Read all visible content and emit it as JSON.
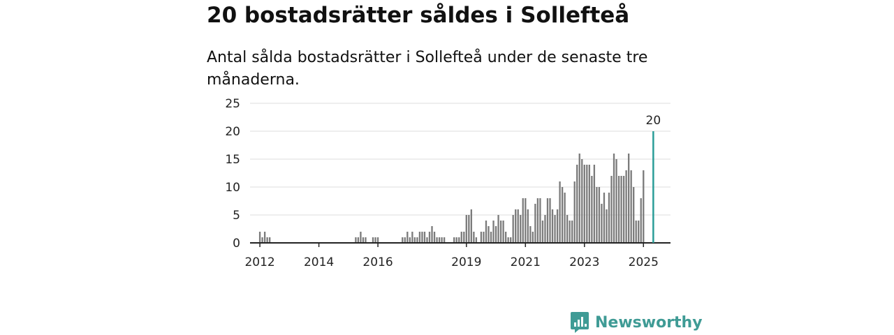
{
  "header": {
    "title": "20 bostadsrätter såldes i Sollefteå",
    "subtitle": "Antal sålda bostadsrätter i Sollefteå under de senaste tre månaderna."
  },
  "brand": {
    "name": "Newsworthy",
    "icon": "newsworthy-logo-icon",
    "color": "#3f9b95"
  },
  "chart_data": {
    "type": "bar",
    "x_axis": {
      "min": "2011-09",
      "max": "2025-12",
      "tick_labels": [
        "2012",
        "2014",
        "2016",
        "2019",
        "2021",
        "2023",
        "2025"
      ],
      "tick_dates": [
        "2012-01",
        "2014-01",
        "2016-01",
        "2019-01",
        "2021-01",
        "2023-01",
        "2025-01"
      ]
    },
    "y_axis": {
      "min": 0,
      "max": 25,
      "ticks": [
        0,
        5,
        10,
        15,
        20,
        25
      ]
    },
    "grid": "horizontal",
    "bar_color": "#7b7b7b",
    "highlight_color": "#2a9d98",
    "highlight": {
      "date": "2025-05",
      "value": 20,
      "label": "20"
    },
    "values": [
      {
        "date": "2012-01",
        "value": 2
      },
      {
        "date": "2012-02",
        "value": 1
      },
      {
        "date": "2012-03",
        "value": 2
      },
      {
        "date": "2012-04",
        "value": 1
      },
      {
        "date": "2012-05",
        "value": 1
      },
      {
        "date": "2015-04",
        "value": 1
      },
      {
        "date": "2015-05",
        "value": 1
      },
      {
        "date": "2015-06",
        "value": 2
      },
      {
        "date": "2015-07",
        "value": 1
      },
      {
        "date": "2015-08",
        "value": 1
      },
      {
        "date": "2015-11",
        "value": 1
      },
      {
        "date": "2015-12",
        "value": 1
      },
      {
        "date": "2016-01",
        "value": 1
      },
      {
        "date": "2016-11",
        "value": 1
      },
      {
        "date": "2016-12",
        "value": 1
      },
      {
        "date": "2017-01",
        "value": 2
      },
      {
        "date": "2017-02",
        "value": 1
      },
      {
        "date": "2017-03",
        "value": 2
      },
      {
        "date": "2017-04",
        "value": 1
      },
      {
        "date": "2017-05",
        "value": 1
      },
      {
        "date": "2017-06",
        "value": 2
      },
      {
        "date": "2017-07",
        "value": 2
      },
      {
        "date": "2017-08",
        "value": 2
      },
      {
        "date": "2017-09",
        "value": 1
      },
      {
        "date": "2017-10",
        "value": 2
      },
      {
        "date": "2017-11",
        "value": 3
      },
      {
        "date": "2017-12",
        "value": 2
      },
      {
        "date": "2018-01",
        "value": 1
      },
      {
        "date": "2018-02",
        "value": 1
      },
      {
        "date": "2018-03",
        "value": 1
      },
      {
        "date": "2018-04",
        "value": 1
      },
      {
        "date": "2018-08",
        "value": 1
      },
      {
        "date": "2018-09",
        "value": 1
      },
      {
        "date": "2018-10",
        "value": 1
      },
      {
        "date": "2018-11",
        "value": 2
      },
      {
        "date": "2018-12",
        "value": 2
      },
      {
        "date": "2019-01",
        "value": 5
      },
      {
        "date": "2019-02",
        "value": 5
      },
      {
        "date": "2019-03",
        "value": 6
      },
      {
        "date": "2019-04",
        "value": 2
      },
      {
        "date": "2019-05",
        "value": 1
      },
      {
        "date": "2019-07",
        "value": 2
      },
      {
        "date": "2019-08",
        "value": 2
      },
      {
        "date": "2019-09",
        "value": 4
      },
      {
        "date": "2019-10",
        "value": 3
      },
      {
        "date": "2019-11",
        "value": 2
      },
      {
        "date": "2019-12",
        "value": 4
      },
      {
        "date": "2020-01",
        "value": 3
      },
      {
        "date": "2020-02",
        "value": 5
      },
      {
        "date": "2020-03",
        "value": 4
      },
      {
        "date": "2020-04",
        "value": 4
      },
      {
        "date": "2020-05",
        "value": 2
      },
      {
        "date": "2020-06",
        "value": 1
      },
      {
        "date": "2020-07",
        "value": 1
      },
      {
        "date": "2020-08",
        "value": 5
      },
      {
        "date": "2020-09",
        "value": 6
      },
      {
        "date": "2020-10",
        "value": 6
      },
      {
        "date": "2020-11",
        "value": 5
      },
      {
        "date": "2020-12",
        "value": 8
      },
      {
        "date": "2021-01",
        "value": 8
      },
      {
        "date": "2021-02",
        "value": 6
      },
      {
        "date": "2021-03",
        "value": 3
      },
      {
        "date": "2021-04",
        "value": 2
      },
      {
        "date": "2021-05",
        "value": 7
      },
      {
        "date": "2021-06",
        "value": 8
      },
      {
        "date": "2021-07",
        "value": 8
      },
      {
        "date": "2021-08",
        "value": 4
      },
      {
        "date": "2021-09",
        "value": 5
      },
      {
        "date": "2021-10",
        "value": 8
      },
      {
        "date": "2021-11",
        "value": 8
      },
      {
        "date": "2021-12",
        "value": 6
      },
      {
        "date": "2022-01",
        "value": 5
      },
      {
        "date": "2022-02",
        "value": 6
      },
      {
        "date": "2022-03",
        "value": 11
      },
      {
        "date": "2022-04",
        "value": 10
      },
      {
        "date": "2022-05",
        "value": 9
      },
      {
        "date": "2022-06",
        "value": 5
      },
      {
        "date": "2022-07",
        "value": 4
      },
      {
        "date": "2022-08",
        "value": 4
      },
      {
        "date": "2022-09",
        "value": 11
      },
      {
        "date": "2022-10",
        "value": 14
      },
      {
        "date": "2022-11",
        "value": 16
      },
      {
        "date": "2022-12",
        "value": 15
      },
      {
        "date": "2023-01",
        "value": 14
      },
      {
        "date": "2023-02",
        "value": 14
      },
      {
        "date": "2023-03",
        "value": 14
      },
      {
        "date": "2023-04",
        "value": 12
      },
      {
        "date": "2023-05",
        "value": 14
      },
      {
        "date": "2023-06",
        "value": 10
      },
      {
        "date": "2023-07",
        "value": 10
      },
      {
        "date": "2023-08",
        "value": 7
      },
      {
        "date": "2023-09",
        "value": 9
      },
      {
        "date": "2023-10",
        "value": 6
      },
      {
        "date": "2023-11",
        "value": 9
      },
      {
        "date": "2023-12",
        "value": 12
      },
      {
        "date": "2024-01",
        "value": 16
      },
      {
        "date": "2024-02",
        "value": 15
      },
      {
        "date": "2024-03",
        "value": 12
      },
      {
        "date": "2024-04",
        "value": 12
      },
      {
        "date": "2024-05",
        "value": 12
      },
      {
        "date": "2024-06",
        "value": 13
      },
      {
        "date": "2024-07",
        "value": 16
      },
      {
        "date": "2024-08",
        "value": 13
      },
      {
        "date": "2024-09",
        "value": 10
      },
      {
        "date": "2024-10",
        "value": 4
      },
      {
        "date": "2024-11",
        "value": 4
      },
      {
        "date": "2024-12",
        "value": 8
      },
      {
        "date": "2025-01",
        "value": 13
      }
    ]
  }
}
